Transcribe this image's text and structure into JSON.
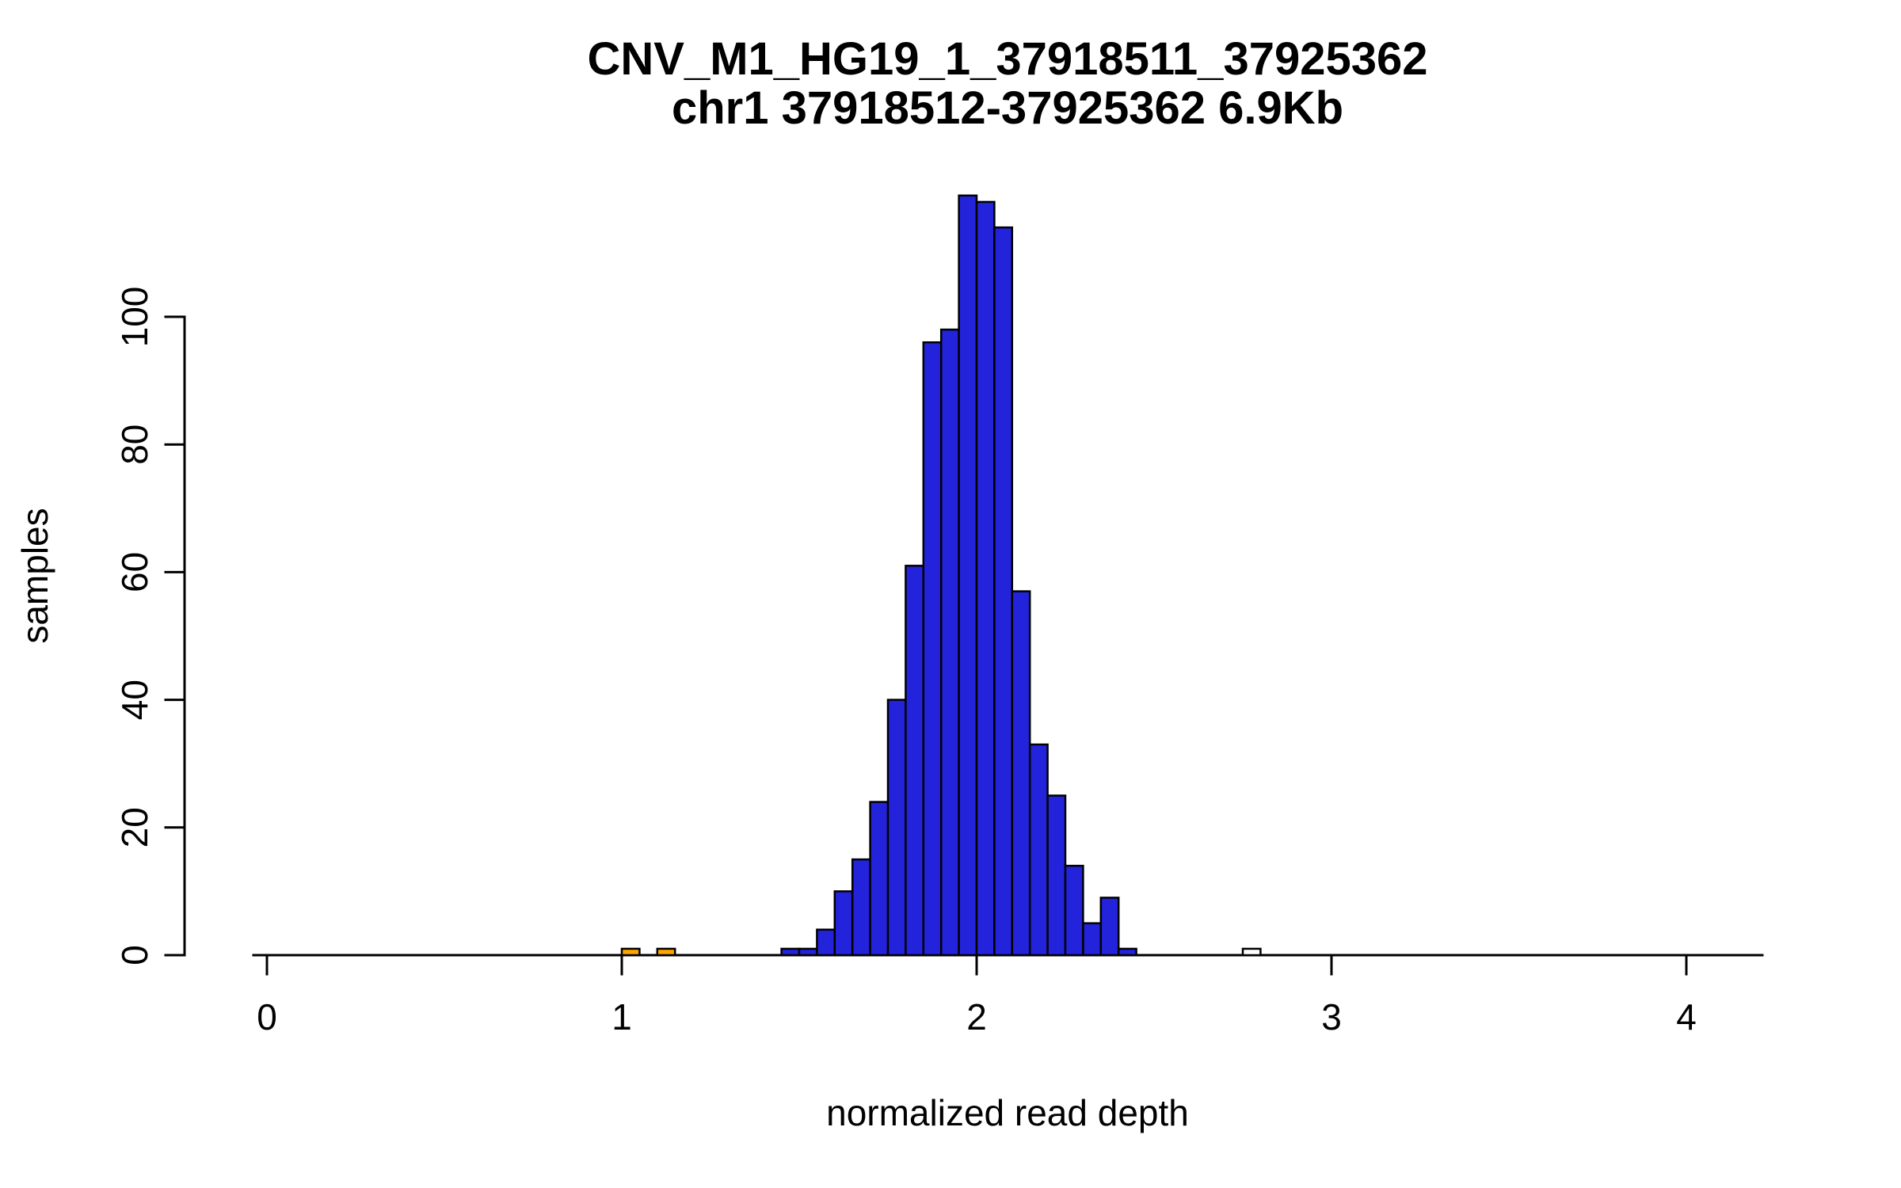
{
  "chart_data": {
    "type": "bar",
    "subtype": "histogram",
    "title": "CNV_M1_HG19_1_37918511_37925362",
    "subtitle": "chr1 37918512-37925362 6.9Kb",
    "xlabel": "normalized read depth",
    "ylabel": "samples",
    "xlim": [
      0,
      4.2
    ],
    "ylim": [
      0,
      120
    ],
    "x_ticks": [
      0,
      1,
      2,
      3,
      4
    ],
    "y_ticks": [
      0,
      20,
      40,
      60,
      80,
      100
    ],
    "grid": "off",
    "legend": "none",
    "bin_width": 0.05,
    "colors": {
      "axis": "#000000",
      "bar_stroke": "#000000",
      "bar_default": "#2323DB",
      "bar_outlier_low": "#FFA500",
      "bar_outlier_high": "#FFFFFF"
    },
    "bins": [
      {
        "x": 1.0,
        "count": 1,
        "fill": "#FFA500"
      },
      {
        "x": 1.1,
        "count": 1,
        "fill": "#FFA500"
      },
      {
        "x": 1.45,
        "count": 1,
        "fill": "#2323DB"
      },
      {
        "x": 1.5,
        "count": 1,
        "fill": "#2323DB"
      },
      {
        "x": 1.55,
        "count": 4,
        "fill": "#2323DB"
      },
      {
        "x": 1.6,
        "count": 10,
        "fill": "#2323DB"
      },
      {
        "x": 1.65,
        "count": 15,
        "fill": "#2323DB"
      },
      {
        "x": 1.7,
        "count": 24,
        "fill": "#2323DB"
      },
      {
        "x": 1.75,
        "count": 40,
        "fill": "#2323DB"
      },
      {
        "x": 1.8,
        "count": 61,
        "fill": "#2323DB"
      },
      {
        "x": 1.85,
        "count": 96,
        "fill": "#2323DB"
      },
      {
        "x": 1.9,
        "count": 98,
        "fill": "#2323DB"
      },
      {
        "x": 1.95,
        "count": 119,
        "fill": "#2323DB"
      },
      {
        "x": 2.0,
        "count": 118,
        "fill": "#2323DB"
      },
      {
        "x": 2.05,
        "count": 114,
        "fill": "#2323DB"
      },
      {
        "x": 2.1,
        "count": 57,
        "fill": "#2323DB"
      },
      {
        "x": 2.15,
        "count": 33,
        "fill": "#2323DB"
      },
      {
        "x": 2.2,
        "count": 25,
        "fill": "#2323DB"
      },
      {
        "x": 2.25,
        "count": 14,
        "fill": "#2323DB"
      },
      {
        "x": 2.3,
        "count": 5,
        "fill": "#2323DB"
      },
      {
        "x": 2.35,
        "count": 9,
        "fill": "#2323DB"
      },
      {
        "x": 2.4,
        "count": 1,
        "fill": "#2323DB"
      },
      {
        "x": 2.75,
        "count": 1,
        "fill": "#FFFFFF"
      }
    ]
  }
}
